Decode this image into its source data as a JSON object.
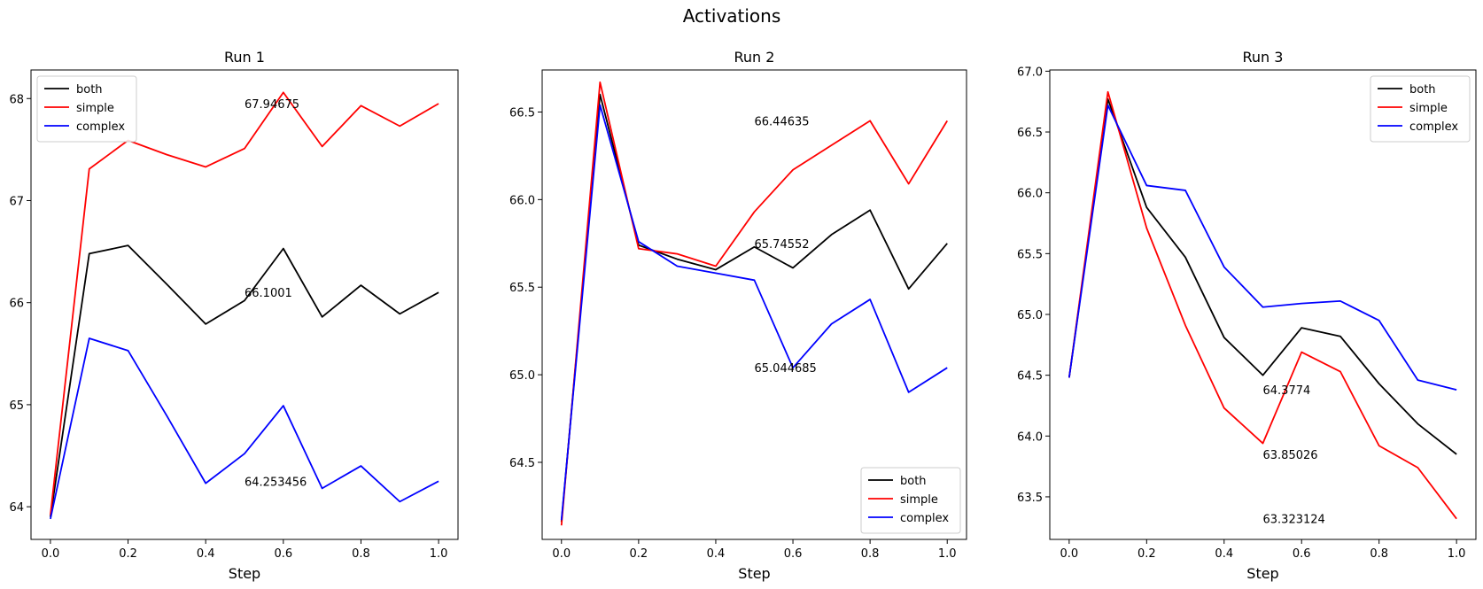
{
  "suptitle": "Activations",
  "chart_data": [
    {
      "type": "line",
      "title": "Run 1",
      "xlabel": "Step",
      "ylabel": "",
      "x": [
        0.0,
        0.1,
        0.2,
        0.3,
        0.4,
        0.5,
        0.6,
        0.7,
        0.8,
        0.9,
        1.0
      ],
      "xlim": [
        -0.05,
        1.05
      ],
      "ylim": [
        63.68,
        68.28
      ],
      "xticks": [
        "0.0",
        "0.2",
        "0.4",
        "0.6",
        "0.8",
        "1.0"
      ],
      "xtick_values": [
        0.0,
        0.2,
        0.4,
        0.6,
        0.8,
        1.0
      ],
      "yticks": [
        "64",
        "65",
        "66",
        "67",
        "68"
      ],
      "ytick_values": [
        64,
        65,
        66,
        67,
        68
      ],
      "legend_position": "upper-left",
      "series": [
        {
          "name": "both",
          "color": "#000000",
          "values": [
            63.9,
            66.48,
            66.56,
            66.18,
            65.79,
            66.02,
            66.53,
            65.86,
            66.17,
            65.89,
            66.1
          ]
        },
        {
          "name": "simple",
          "color": "#ff0000",
          "values": [
            63.92,
            67.31,
            67.59,
            67.45,
            67.33,
            67.51,
            68.06,
            67.53,
            67.93,
            67.73,
            67.95
          ]
        },
        {
          "name": "complex",
          "color": "#0000ff",
          "values": [
            63.88,
            65.65,
            65.53,
            64.89,
            64.23,
            64.52,
            64.99,
            64.18,
            64.4,
            64.05,
            64.25
          ]
        }
      ],
      "annotations": [
        {
          "text": "67.94675",
          "x": 0.5,
          "y": 67.95
        },
        {
          "text": "66.1001",
          "x": 0.5,
          "y": 66.1
        },
        {
          "text": "64.253456",
          "x": 0.5,
          "y": 64.25
        }
      ]
    },
    {
      "type": "line",
      "title": "Run 2",
      "xlabel": "Step",
      "ylabel": "",
      "x": [
        0.0,
        0.1,
        0.2,
        0.3,
        0.4,
        0.5,
        0.6,
        0.7,
        0.8,
        0.9,
        1.0
      ],
      "xlim": [
        -0.05,
        1.05
      ],
      "ylim": [
        64.06,
        66.74
      ],
      "xticks": [
        "0.0",
        "0.2",
        "0.4",
        "0.6",
        "0.8",
        "1.0"
      ],
      "xtick_values": [
        0.0,
        0.2,
        0.4,
        0.6,
        0.8,
        1.0
      ],
      "yticks": [
        "64.5",
        "65.0",
        "65.5",
        "66.0",
        "66.5"
      ],
      "ytick_values": [
        64.5,
        65.0,
        65.5,
        66.0,
        66.5
      ],
      "legend_position": "lower-right",
      "series": [
        {
          "name": "both",
          "color": "#000000",
          "values": [
            64.16,
            66.6,
            65.74,
            65.66,
            65.6,
            65.73,
            65.61,
            65.8,
            65.94,
            65.49,
            65.75
          ]
        },
        {
          "name": "simple",
          "color": "#ff0000",
          "values": [
            64.14,
            66.67,
            65.72,
            65.69,
            65.62,
            65.93,
            66.17,
            66.31,
            66.45,
            66.09,
            66.45
          ]
        },
        {
          "name": "complex",
          "color": "#0000ff",
          "values": [
            64.17,
            66.54,
            65.76,
            65.62,
            65.58,
            65.54,
            65.04,
            65.29,
            65.43,
            64.9,
            65.04
          ]
        }
      ],
      "annotations": [
        {
          "text": "66.44635",
          "x": 0.5,
          "y": 66.45
        },
        {
          "text": "65.74552",
          "x": 0.5,
          "y": 65.75
        },
        {
          "text": "65.044685",
          "x": 0.5,
          "y": 65.04
        }
      ]
    },
    {
      "type": "line",
      "title": "Run 3",
      "xlabel": "Step",
      "ylabel": "",
      "x": [
        0.0,
        0.1,
        0.2,
        0.3,
        0.4,
        0.5,
        0.6,
        0.7,
        0.8,
        0.9,
        1.0
      ],
      "xlim": [
        -0.05,
        1.05
      ],
      "ylim": [
        63.15,
        67.01
      ],
      "xticks": [
        "0.0",
        "0.2",
        "0.4",
        "0.6",
        "0.8",
        "1.0"
      ],
      "xtick_values": [
        0.0,
        0.2,
        0.4,
        0.6,
        0.8,
        1.0
      ],
      "yticks": [
        "63.5",
        "64.0",
        "64.5",
        "65.0",
        "65.5",
        "66.0",
        "66.5",
        "67.0"
      ],
      "ytick_values": [
        63.5,
        64.0,
        64.5,
        65.0,
        65.5,
        66.0,
        66.5,
        67.0
      ],
      "legend_position": "upper-right",
      "series": [
        {
          "name": "both",
          "color": "#000000",
          "values": [
            64.48,
            66.77,
            65.88,
            65.47,
            64.81,
            64.5,
            64.89,
            64.82,
            64.43,
            64.1,
            63.85
          ]
        },
        {
          "name": "simple",
          "color": "#ff0000",
          "values": [
            64.48,
            66.83,
            65.71,
            64.91,
            64.23,
            63.94,
            64.69,
            64.53,
            63.92,
            63.74,
            63.32
          ]
        },
        {
          "name": "complex",
          "color": "#0000ff",
          "values": [
            64.48,
            66.72,
            66.06,
            66.02,
            65.39,
            65.06,
            65.09,
            65.11,
            64.95,
            64.46,
            64.38
          ]
        }
      ],
      "annotations": [
        {
          "text": "64.3774",
          "x": 0.5,
          "y": 64.38
        },
        {
          "text": "63.85026",
          "x": 0.5,
          "y": 63.85
        },
        {
          "text": "63.323124",
          "x": 0.5,
          "y": 63.32
        }
      ]
    }
  ]
}
